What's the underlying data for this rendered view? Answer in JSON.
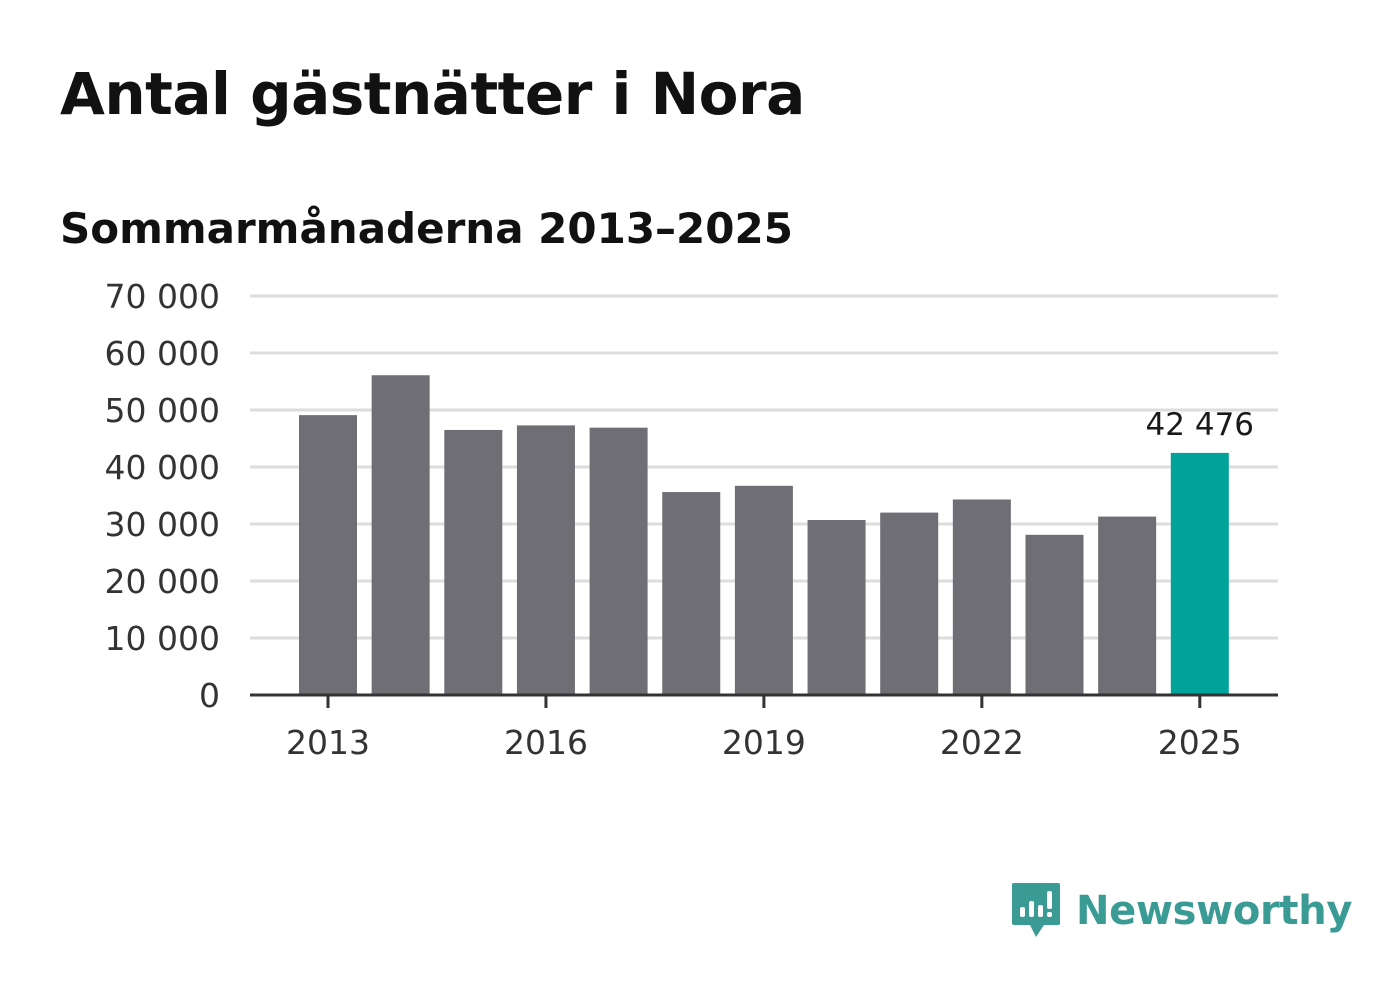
{
  "header": {
    "title": "Antal gästnätter i Nora",
    "subtitle": "Sommarmånaderna 2013–2025"
  },
  "brand": {
    "name": "Newsworthy",
    "color": "#3a9b95",
    "icon": "chart-speech-bubble-icon"
  },
  "colors": {
    "bar": "#6f6e74",
    "highlight": "#00a39a",
    "grid": "#dddddd",
    "axis": "#333333"
  },
  "chart_data": {
    "type": "bar",
    "title": "Antal gästnätter i Nora",
    "subtitle": "Sommarmånaderna 2013–2025",
    "xlabel": "",
    "ylabel": "",
    "categories": [
      "2013",
      "2014",
      "2015",
      "2016",
      "2017",
      "2018",
      "2019",
      "2020",
      "2021",
      "2022",
      "2023",
      "2024",
      "2025"
    ],
    "values": [
      49100,
      56100,
      46500,
      47300,
      46900,
      35600,
      36700,
      30700,
      32000,
      34300,
      28100,
      31300,
      42476
    ],
    "ylim": [
      0,
      70000
    ],
    "yticks": [
      0,
      10000,
      20000,
      30000,
      40000,
      50000,
      60000,
      70000
    ],
    "ytick_labels": [
      "0",
      "10 000",
      "20 000",
      "30 000",
      "40 000",
      "50 000",
      "60 000",
      "70 000"
    ],
    "xtick_labels": [
      "2013",
      "2016",
      "2019",
      "2022",
      "2025"
    ],
    "highlight": "2025",
    "data_labels": [
      {
        "category": "2025",
        "text": "42 476"
      }
    ],
    "grid": true,
    "legend": "none"
  }
}
